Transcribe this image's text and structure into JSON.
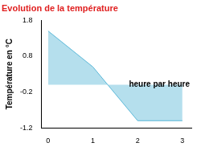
{
  "chart_data": {
    "type": "area",
    "title": "Evolution de la température",
    "y_label": "Température en °C",
    "annotation": "heure par heure",
    "x": [
      0,
      1,
      2,
      3
    ],
    "values": [
      1.5,
      0.5,
      -1.0,
      -1.0
    ],
    "color": "#5bb8d8",
    "xlim": [
      -0.15,
      3.2
    ],
    "xticks": [
      0,
      1,
      2,
      3
    ],
    "ylim": [
      -1.2,
      1.8
    ],
    "yticks": [
      -1.2,
      -0.2,
      0.8,
      1.8
    ],
    "grid": false
  }
}
